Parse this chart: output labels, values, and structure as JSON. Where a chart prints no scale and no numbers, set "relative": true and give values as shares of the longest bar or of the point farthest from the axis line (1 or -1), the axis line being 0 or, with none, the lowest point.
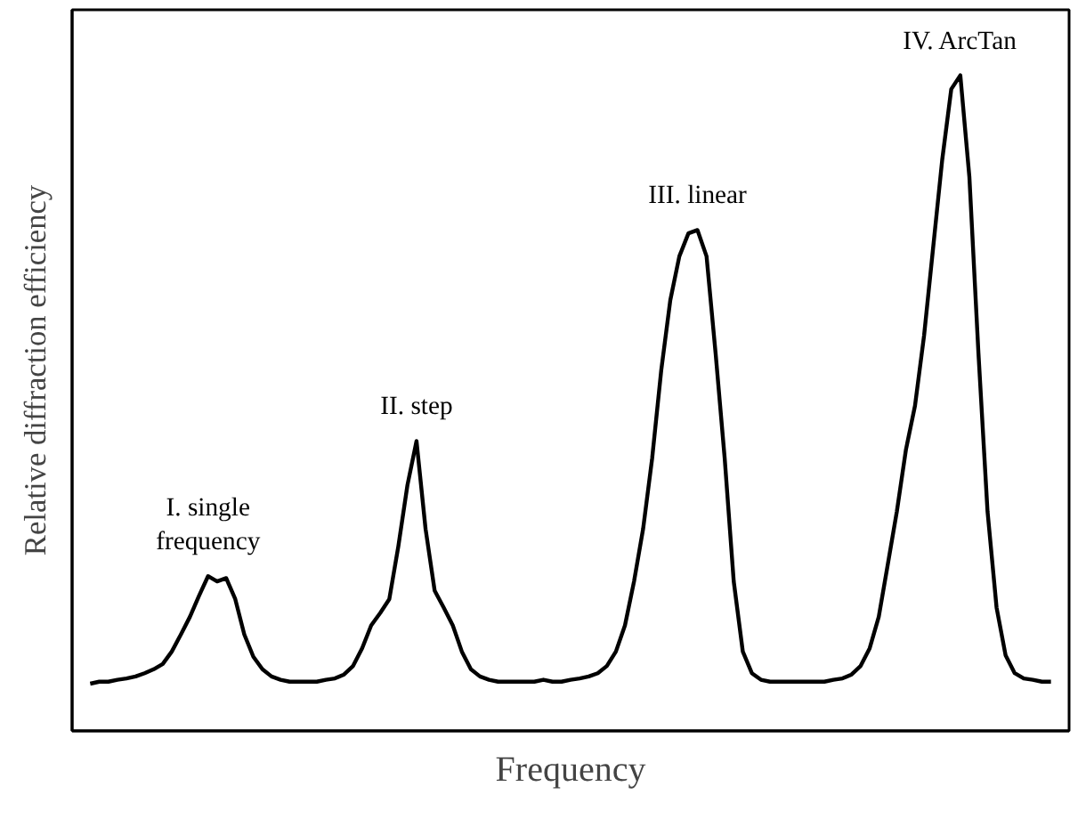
{
  "chart_data": {
    "type": "line",
    "relative": true,
    "xlabel": "Frequency",
    "ylabel": "Relative diffraction efficiency",
    "tick_labels": false,
    "grid": false,
    "marker": "none",
    "line_style": "solid",
    "annotations": [
      "I. single\nfrequency",
      "II. step",
      "III. linear",
      "IV. ArcTan"
    ],
    "categories": [
      null,
      null,
      null,
      null,
      null,
      null,
      null,
      null,
      null,
      null,
      null,
      null,
      null,
      null,
      null,
      null,
      null,
      null,
      null,
      null,
      null,
      null,
      null,
      null,
      null,
      null,
      null,
      null,
      null,
      null,
      null,
      null,
      null,
      null,
      null,
      null,
      null,
      null,
      null,
      null,
      null,
      null,
      null,
      null,
      null,
      null,
      null,
      null,
      null,
      null,
      null,
      null,
      null,
      null,
      null,
      null,
      null,
      null,
      null,
      null,
      null,
      null,
      null,
      null,
      null,
      null,
      null,
      null,
      null,
      null,
      null,
      null,
      null,
      null,
      null,
      null,
      null,
      null,
      null,
      null,
      null,
      null,
      null,
      null,
      null,
      null,
      null,
      null,
      null,
      null,
      null,
      null,
      null,
      null,
      null,
      null,
      null,
      null,
      null,
      null,
      null,
      null,
      null,
      null,
      null,
      null,
      null
    ],
    "series": [
      {
        "color": "#000000",
        "values": [
          0.072,
          0.075,
          0.075,
          0.078,
          0.08,
          0.083,
          0.088,
          0.094,
          0.102,
          0.121,
          0.147,
          0.174,
          0.206,
          0.236,
          0.228,
          0.233,
          0.201,
          0.147,
          0.113,
          0.094,
          0.083,
          0.078,
          0.075,
          0.075,
          0.075,
          0.075,
          0.078,
          0.08,
          0.086,
          0.099,
          0.126,
          0.161,
          0.18,
          0.201,
          0.282,
          0.375,
          0.442,
          0.308,
          0.214,
          0.188,
          0.161,
          0.121,
          0.094,
          0.083,
          0.078,
          0.075,
          0.075,
          0.075,
          0.075,
          0.075,
          0.078,
          0.075,
          0.075,
          0.078,
          0.08,
          0.083,
          0.088,
          0.099,
          0.121,
          0.161,
          0.228,
          0.308,
          0.416,
          0.55,
          0.657,
          0.724,
          0.759,
          0.764,
          0.724,
          0.576,
          0.416,
          0.228,
          0.121,
          0.088,
          0.078,
          0.075,
          0.075,
          0.075,
          0.075,
          0.075,
          0.075,
          0.075,
          0.078,
          0.08,
          0.086,
          0.099,
          0.126,
          0.174,
          0.254,
          0.335,
          0.429,
          0.496,
          0.603,
          0.737,
          0.871,
          0.979,
          1.0,
          0.845,
          0.576,
          0.335,
          0.188,
          0.115,
          0.088,
          0.08,
          0.078,
          0.075,
          0.075
        ]
      }
    ]
  }
}
